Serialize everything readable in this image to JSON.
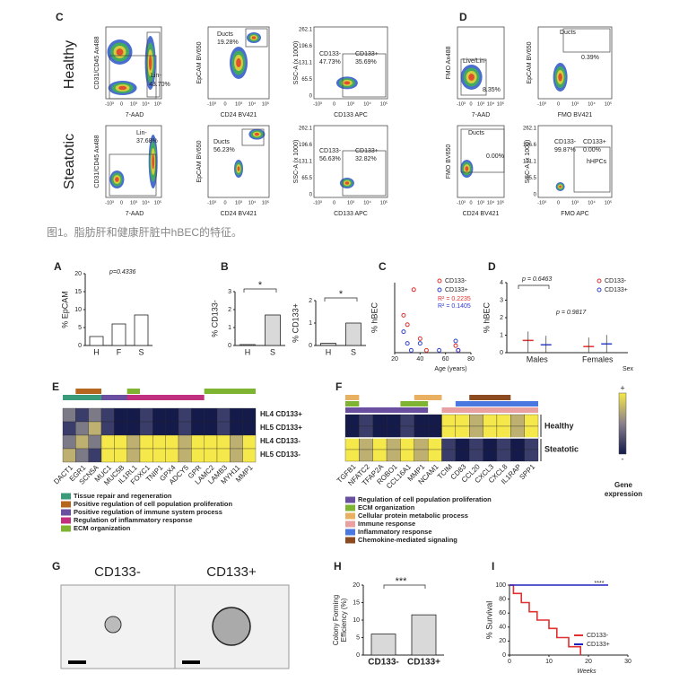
{
  "panel_labels": {
    "flow_C": "C",
    "flow_D": "D",
    "A": "A",
    "B": "B",
    "C": "C",
    "D": "D",
    "E": "E",
    "F": "F",
    "G": "G",
    "H": "H",
    "I": "I"
  },
  "flow": {
    "row_healthy": "Healthy",
    "row_steatotic": "Steatotic",
    "log_ticks": [
      "-10³",
      "0",
      "10³",
      "10⁴",
      "10⁵"
    ],
    "ssc_ticks": [
      "262.1",
      "196.6",
      "131.1",
      "65.5",
      "0"
    ],
    "c_h": [
      "CD31/CD45 Ax488",
      "7-AAD",
      "Lin-",
      "43.70%",
      "EpCAM BV650",
      "Ducts",
      "19.28%",
      "CD24 BV421",
      "SSC-A (x 1000)",
      "CD133-",
      "47.73%",
      "CD133+",
      "35.69%",
      "CD133 APC"
    ],
    "c_s": [
      "CD31/CD45 Ax488",
      "7-AAD",
      "Lin-",
      "37.68%",
      "EpCAM BV650",
      "Ducts",
      "56.23%",
      "CD24 BV421",
      "SSC-A (x 1000)",
      "CD133-",
      "56.63%",
      "CD133+",
      "32.82%",
      "CD133 APC"
    ],
    "d_1": [
      "FMO Ax488",
      "7-AAD",
      "Live/Lin-",
      "8.35%",
      "EpCAM BV650",
      "Ducts",
      "0.39%",
      "FMO BV421"
    ],
    "d_2": [
      "FMO BV650",
      "CD24 BV421",
      "Ducts",
      "0.00%",
      "SSC-A (x 1000)",
      "CD133-",
      "99.87%",
      "CD133+",
      "0.00%",
      "hHPCs",
      "FMO APC"
    ]
  },
  "caption": "图1。脂肪肝和健康肝脏中hBEC的特征。",
  "chart_data": [
    {
      "type": "bar",
      "ylabel": "% EpCAM",
      "categories": [
        "H",
        "F",
        "S"
      ],
      "values": [
        2.5,
        6,
        8.5
      ],
      "color": "#ffffff",
      "ylim": [
        0,
        20
      ],
      "yticks": [
        0,
        5,
        10,
        15,
        20
      ],
      "annotations": [
        "p=0.4336"
      ]
    },
    {
      "type": "bar",
      "ylabel": "% CD133-",
      "categories": [
        "H",
        "S"
      ],
      "values": [
        0.05,
        1.7
      ],
      "color": "#d9d9d9",
      "ylim": [
        0,
        3
      ],
      "yticks": [
        0,
        1,
        2,
        3
      ],
      "annotations": [
        "*"
      ]
    },
    {
      "type": "bar",
      "ylabel": "% CD133+",
      "categories": [
        "H",
        "S"
      ],
      "values": [
        0.1,
        1.0
      ],
      "color": "#d9d9d9",
      "ylim": [
        0,
        2
      ],
      "yticks": [
        0,
        1,
        2
      ],
      "annotations": [
        "*"
      ]
    },
    {
      "type": "scatter",
      "ylabel": "% hBEC",
      "xlabel": "Age (years)",
      "xlim": [
        20,
        80
      ],
      "xticks": [
        20,
        40,
        60,
        80
      ],
      "ylim": [
        0,
        3
      ],
      "series": [
        {
          "name": "CD133-",
          "color": "#e03030",
          "x": [
            27,
            30,
            35,
            40,
            45,
            68,
            70
          ],
          "values": [
            1.6,
            1.2,
            2.7,
            0.6,
            0.1,
            0.3,
            0.1
          ]
        },
        {
          "name": "CD133+",
          "color": "#3040d0",
          "x": [
            27,
            30,
            33,
            40,
            55,
            68,
            70
          ],
          "values": [
            0.9,
            0.4,
            0.1,
            0.4,
            0.1,
            0.5,
            0.1
          ]
        }
      ],
      "annotations": [
        "R² = 0.2235",
        "R² = 0.1405"
      ]
    },
    {
      "type": "dot",
      "ylabel": "% hBEC",
      "xlabel": "Sex",
      "categories": [
        "Males",
        "Females"
      ],
      "ylim": [
        0,
        4
      ],
      "yticks": [
        0,
        1,
        2,
        3,
        4
      ],
      "series": [
        {
          "name": "CD133-",
          "color": "#e03030",
          "values": [
            0.7,
            0.35
          ]
        },
        {
          "name": "CD133+",
          "color": "#3040d0",
          "values": [
            0.45,
            0.5
          ]
        }
      ],
      "annotations": [
        "p = 0.6463",
        "p = 0.9817"
      ]
    },
    {
      "type": "bar",
      "ylabel": [
        "Colony Forming",
        "Efficiency (%)"
      ],
      "categories": [
        "CD133-",
        "CD133+"
      ],
      "values": [
        6,
        11.5
      ],
      "color": "#d9d9d9",
      "ylim": [
        0,
        20
      ],
      "yticks": [
        0,
        5,
        10,
        15,
        20
      ],
      "annotations": [
        "***"
      ]
    },
    {
      "type": "line",
      "ylabel": "% Survival",
      "xlabel": "Weeks",
      "xlim": [
        0,
        30
      ],
      "xticks": [
        0,
        10,
        20,
        30
      ],
      "ylim": [
        0,
        100
      ],
      "yticks": [
        0,
        20,
        40,
        60,
        80,
        100
      ],
      "series": [
        {
          "name": "CD133-",
          "color": "#e03030",
          "x": [
            0,
            1,
            1,
            3,
            3,
            5,
            5,
            7,
            7,
            10,
            10,
            12,
            12,
            15,
            15,
            18,
            18
          ],
          "values": [
            100,
            100,
            88,
            88,
            75,
            75,
            62,
            62,
            50,
            50,
            38,
            38,
            25,
            25,
            12,
            12,
            0
          ]
        },
        {
          "name": "CD133+",
          "color": "#2020c0",
          "x": [
            0,
            25
          ],
          "values": [
            100,
            100
          ]
        }
      ],
      "annotations": [
        "****"
      ]
    }
  ],
  "heatmap_E": {
    "genes": [
      "DACT1",
      "EGR1",
      "SCN5A",
      "MUC1",
      "MUC5B",
      "IL1RL1",
      "FOXC1",
      "TNIP1",
      "GPX4",
      "ADCY5",
      "GPR",
      "LAMC2",
      "LAMB3",
      "MYH11",
      "MMP1"
    ],
    "samples": [
      "HL4 CD133+",
      "HL5 CD133+",
      "HL4 CD133-",
      "HL5 CD133-"
    ],
    "legend": [
      "Tissue repair and regeneration",
      "Positive regulation of cell population proliferation",
      "Positive regulation of immune system process",
      "Regulation of inflammatory response",
      "ECM organization"
    ]
  },
  "heatmap_F": {
    "genes": [
      "TGFB1",
      "NFATC2",
      "TFAP2A",
      "ROBO1",
      "CCL16A1",
      "MMP1",
      "NCAM1",
      "TCIM",
      "CD83",
      "CCL20",
      "CXCL3",
      "CXCL8",
      "IL1RAP",
      "SPP1"
    ],
    "groups": [
      "Healthy",
      "Steatotic"
    ],
    "legend": [
      "Regulation of cell population proliferation",
      "ECM organization",
      "Cellular protein metabolic process",
      "Immune response",
      "Inflammatory response",
      "Chemokine-mediated signaling"
    ],
    "colorbar": [
      "+",
      "-"
    ],
    "colorbar_title": [
      "Gene",
      "expression"
    ]
  },
  "colony_images": {
    "labels": [
      "CD133-",
      "CD133+"
    ]
  }
}
